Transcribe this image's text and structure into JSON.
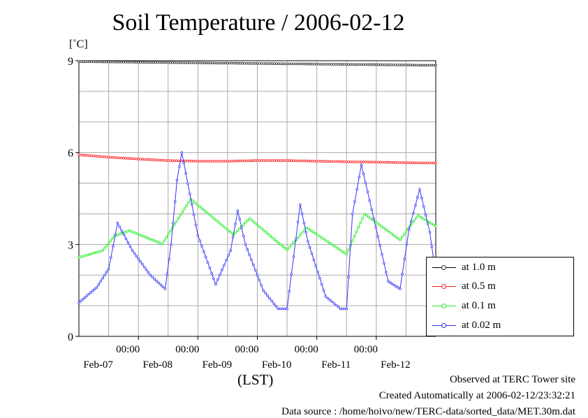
{
  "chart_data": {
    "type": "line",
    "title": "Soil Temperature / 2006-02-12",
    "unit_label": "[˚C]",
    "xlabel": "(LST)",
    "ylabel": "",
    "ylim": [
      0,
      9
    ],
    "yticks": [
      0,
      3,
      6,
      9
    ],
    "x_tick_time_labels": [
      "00:00",
      "00:00",
      "00:00",
      "00:00",
      "00:00"
    ],
    "x_date_labels": [
      "Feb-07",
      "Feb-08",
      "Feb-09",
      "Feb-10",
      "Feb-11",
      "Feb-12"
    ],
    "grid": true,
    "legend_placement": "right",
    "series": [
      {
        "name": "at 1.0 m",
        "color": "#333333",
        "x": [
          0,
          1,
          2,
          3,
          4,
          5,
          6
        ],
        "y": [
          8.97,
          8.95,
          8.93,
          8.91,
          8.89,
          8.87,
          8.85
        ]
      },
      {
        "name": "at 0.5 m",
        "color": "#ff2020",
        "x": [
          0,
          0.5,
          1,
          1.5,
          2,
          2.5,
          3,
          3.5,
          4,
          4.5,
          5,
          5.5,
          6
        ],
        "y": [
          5.93,
          5.85,
          5.79,
          5.74,
          5.72,
          5.72,
          5.74,
          5.74,
          5.72,
          5.7,
          5.69,
          5.67,
          5.66
        ]
      },
      {
        "name": "at 0.1 m",
        "color": "#22ee22",
        "x": [
          0,
          0.4,
          0.6,
          0.85,
          1.4,
          1.88,
          2.6,
          2.87,
          3.5,
          3.83,
          4.5,
          4.8,
          5.4,
          5.7,
          6
        ],
        "y": [
          2.58,
          2.8,
          3.28,
          3.45,
          3.02,
          4.48,
          3.32,
          3.85,
          2.82,
          3.55,
          2.68,
          4.0,
          3.15,
          3.95,
          3.6
        ]
      },
      {
        "name": "at 0.02 m",
        "color": "#3333ff",
        "x": [
          0,
          0.3,
          0.5,
          0.65,
          0.9,
          1.2,
          1.45,
          1.55,
          1.65,
          1.73,
          2.0,
          2.3,
          2.55,
          2.67,
          2.8,
          3.1,
          3.35,
          3.5,
          3.72,
          3.85,
          4.15,
          4.4,
          4.5,
          4.6,
          4.75,
          5.2,
          5.4,
          5.55,
          5.73,
          5.9,
          6
        ],
        "y": [
          1.1,
          1.6,
          2.2,
          3.7,
          2.8,
          2.0,
          1.55,
          3.0,
          5.1,
          6.0,
          3.3,
          1.7,
          2.8,
          4.1,
          3.0,
          1.5,
          0.9,
          0.9,
          4.3,
          3.1,
          1.3,
          0.9,
          0.9,
          4.0,
          5.6,
          1.8,
          1.55,
          3.5,
          4.8,
          3.4,
          2.0
        ]
      }
    ]
  },
  "footer": {
    "line1": "Observed at TERC Tower site",
    "line2": "Created Automatically at 2006-02-12/23:32:21",
    "line3": "Data source : /home/hoivo/new/TERC-data/sorted_data/MET.30m.dat"
  }
}
